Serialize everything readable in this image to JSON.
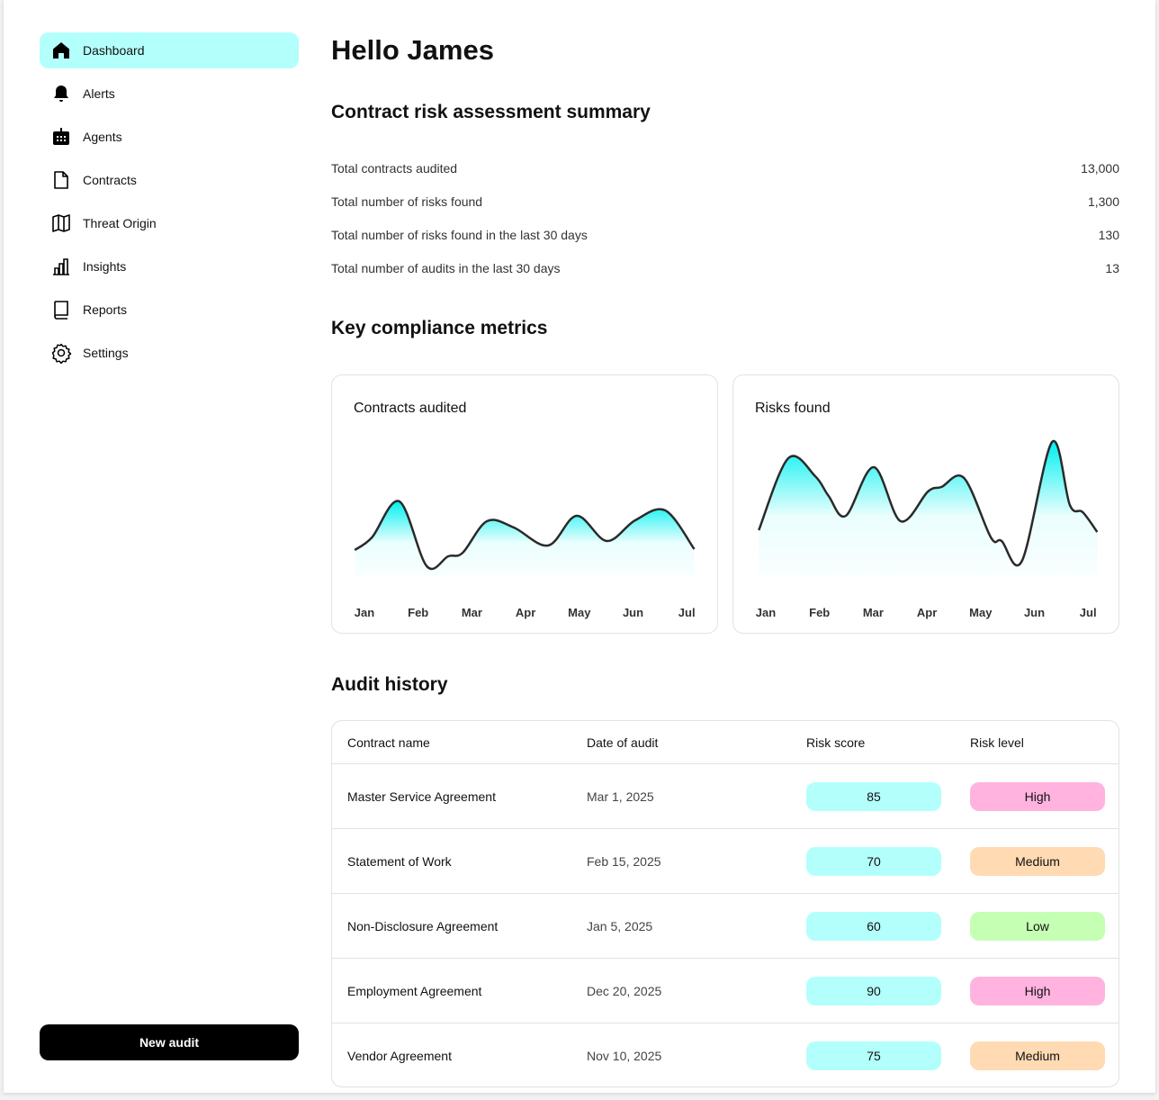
{
  "sidebar": {
    "items": [
      {
        "label": "Dashboard",
        "icon": "home-icon",
        "active": true
      },
      {
        "label": "Alerts",
        "icon": "bell-icon"
      },
      {
        "label": "Agents",
        "icon": "robot-icon"
      },
      {
        "label": "Contracts",
        "icon": "document-icon"
      },
      {
        "label": "Threat Origin",
        "icon": "map-icon"
      },
      {
        "label": "Insights",
        "icon": "bar-chart-icon"
      },
      {
        "label": "Reports",
        "icon": "book-icon"
      },
      {
        "label": "Settings",
        "icon": "gear-icon"
      }
    ],
    "new_audit": "New audit"
  },
  "header": {
    "greeting": "Hello James"
  },
  "summary": {
    "title": "Contract risk assessment summary",
    "rows": [
      {
        "label": "Total contracts audited",
        "value": "13,000"
      },
      {
        "label": "Total number of risks found",
        "value": "1,300"
      },
      {
        "label": "Total number of risks found in the last 30 days",
        "value": "130"
      },
      {
        "label": "Total number of audits in the last 30 days",
        "value": "13"
      }
    ]
  },
  "metrics": {
    "title": "Key compliance metrics"
  },
  "chart_data": [
    {
      "type": "area",
      "title": "Contracts audited",
      "categories": [
        "Jan",
        "Feb",
        "Mar",
        "Apr",
        "May",
        "Jun",
        "Jul"
      ],
      "grid": false,
      "fill_color": "#00f0f0",
      "line_color": "#2a2a2a",
      "x": [
        -0.18,
        0.14,
        0.65,
        1.16,
        1.56,
        1.83,
        2.28,
        2.78,
        3.42,
        3.95,
        4.51,
        5.04,
        5.6,
        6.14
      ],
      "values": [
        30,
        44,
        84,
        12,
        23,
        27,
        62,
        55,
        35,
        68,
        40,
        63,
        74,
        31
      ]
    },
    {
      "type": "area",
      "title": "Risks found",
      "categories": [
        "Jan",
        "Feb",
        "Mar",
        "Apr",
        "May",
        "Jun",
        "Jul"
      ],
      "grid": false,
      "fill_color": "#00f0f0",
      "line_color": "#2a2a2a",
      "x": [
        -0.13,
        0.42,
        0.92,
        1.17,
        1.49,
        2.01,
        2.51,
        3.02,
        3.27,
        3.69,
        4.19,
        4.39,
        4.77,
        5.33,
        5.66,
        5.9,
        6.17
      ],
      "values": [
        52,
        132,
        112,
        90,
        68,
        122,
        62,
        95,
        100,
        110,
        44,
        40,
        18,
        150,
        80,
        72,
        50
      ]
    }
  ],
  "audit": {
    "title": "Audit history",
    "columns": [
      "Contract name",
      "Date of audit",
      "Risk score",
      "Risk level"
    ],
    "rows": [
      {
        "name": "Master Service Agreement",
        "date": "Mar 1, 2025",
        "score": "85",
        "level": "High"
      },
      {
        "name": "Statement of Work",
        "date": "Feb 15, 2025",
        "score": "70",
        "level": "Medium"
      },
      {
        "name": "Non-Disclosure Agreement",
        "date": "Jan 5, 2025",
        "score": "60",
        "level": "Low"
      },
      {
        "name": "Employment Agreement",
        "date": "Dec 20, 2025",
        "score": "90",
        "level": "High"
      },
      {
        "name": "Vendor Agreement",
        "date": "Nov 10, 2025",
        "score": "75",
        "level": "Medium"
      }
    ],
    "colors": {
      "score": "#b3fffc",
      "High": "#ffb3de",
      "Medium": "#ffdab3",
      "Low": "#c4ffb3"
    }
  }
}
